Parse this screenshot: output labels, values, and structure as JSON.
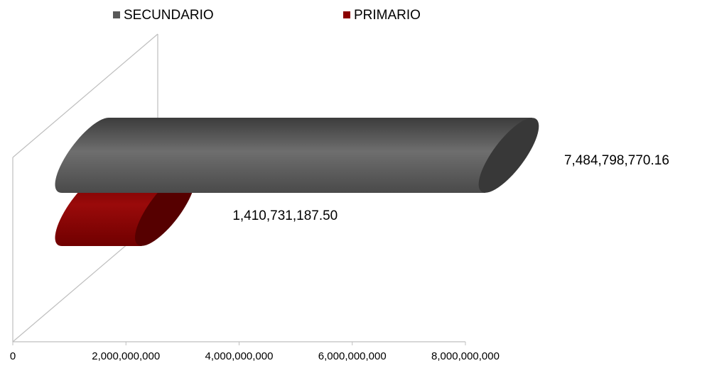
{
  "chart_data": {
    "type": "bar3d_horizontal",
    "series": [
      {
        "name": "SECUNDARIO",
        "color": "#595959",
        "values": [
          7484798770.16
        ],
        "value_labels": [
          "7,484,798,770.16"
        ]
      },
      {
        "name": "PRIMARIO",
        "color": "#8b0000",
        "values": [
          1410731187.5
        ],
        "value_labels": [
          "1,410,731,187.50"
        ]
      }
    ],
    "xlim": [
      0,
      8000000000
    ],
    "xticks": [
      0,
      {
        "value": 2000000000,
        "label": "2,000,000,000"
      },
      {
        "value": 4000000000,
        "label": "4,000,000,000"
      },
      {
        "value": 6000000000,
        "label": "6,000,000,000"
      },
      {
        "value": 8000000000,
        "label": "8,000,000,000"
      }
    ],
    "legend": "top"
  }
}
